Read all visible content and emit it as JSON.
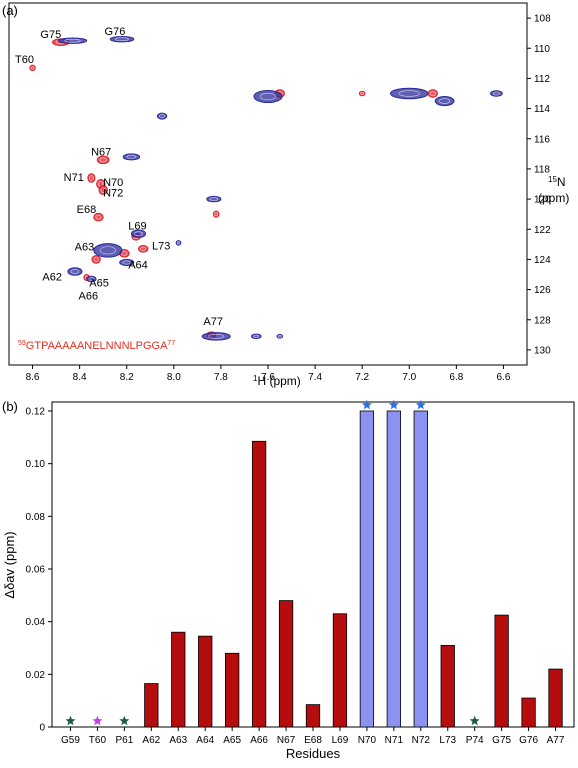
{
  "panel_a": {
    "label": "(a)",
    "xlabel_sup": "1",
    "xlabel_main": "H (ppm)",
    "ylabel_sup": "15",
    "ylabel_main": "N",
    "ylabel_unit": "(ppm)",
    "sequence_start": "59",
    "sequence_text": "GTPAAAAANELNNNLPGGA",
    "sequence_end": "77",
    "sequence_color": "#e03020",
    "series_colors": {
      "red": "#e0202a",
      "blue": "#2a2a9a"
    }
  },
  "panel_b": {
    "label": "(b)",
    "colors": {
      "bar": "#b50d0d",
      "highlight_bar": "#8c92f0",
      "star_green": "#1f5a4a",
      "star_magenta": "#c040e0",
      "star_blue": "#2a6fe6"
    }
  },
  "chart_data": [
    {
      "type": "scatter",
      "xlabel": "1H (ppm)",
      "ylabel": "15N (ppm)",
      "xlim": [
        8.7,
        6.5
      ],
      "ylim": [
        131,
        107
      ],
      "x_ticks": [
        "8.6",
        "8.4",
        "8.2",
        "8.0",
        "7.8",
        "7.6",
        "7.4",
        "7.2",
        "7.0",
        "6.8",
        "6.6"
      ],
      "x_tick_values": [
        8.6,
        8.4,
        8.2,
        8.0,
        7.8,
        7.6,
        7.4,
        7.2,
        7.0,
        6.8,
        6.6
      ],
      "y_ticks": [
        "108",
        "110",
        "112",
        "114",
        "116",
        "118",
        "120",
        "122",
        "124",
        "126",
        "128",
        "130"
      ],
      "y_tick_values": [
        108,
        110,
        112,
        114,
        116,
        118,
        120,
        122,
        124,
        126,
        128,
        130
      ],
      "annotations": [
        {
          "text": "G75",
          "x": 8.48,
          "y": 109.6
        },
        {
          "text": "G76",
          "x": 8.25,
          "y": 109.4
        },
        {
          "text": "T60",
          "x": 8.6,
          "y": 111.3
        },
        {
          "text": "N67",
          "x": 8.3,
          "y": 117.3
        },
        {
          "text": "N71",
          "x": 8.34,
          "y": 118.6
        },
        {
          "text": "N70",
          "x": 8.3,
          "y": 119.0
        },
        {
          "text": "N72",
          "x": 8.3,
          "y": 119.3
        },
        {
          "text": "E68",
          "x": 8.32,
          "y": 121.2
        },
        {
          "text": "L69",
          "x": 8.18,
          "y": 122.4
        },
        {
          "text": "A63",
          "x": 8.32,
          "y": 123.6
        },
        {
          "text": "L73",
          "x": 8.13,
          "y": 123.2
        },
        {
          "text": "A64",
          "x": 8.22,
          "y": 124.4
        },
        {
          "text": "A62",
          "x": 8.44,
          "y": 124.8
        },
        {
          "text": "A65",
          "x": 8.36,
          "y": 125.2
        },
        {
          "text": "A66",
          "x": 8.38,
          "y": 125.6
        },
        {
          "text": "A77",
          "x": 7.82,
          "y": 129.0
        }
      ],
      "series": [
        {
          "name": "",
          "color": "red",
          "points": [
            {
              "x": 8.48,
              "y": 109.6,
              "rx": 0.035,
              "ry": 0.22
            },
            {
              "x": 8.6,
              "y": 111.3,
              "rx": 0.012,
              "ry": 0.18
            },
            {
              "x": 8.3,
              "y": 117.4,
              "rx": 0.025,
              "ry": 0.25
            },
            {
              "x": 8.35,
              "y": 118.6,
              "rx": 0.015,
              "ry": 0.28
            },
            {
              "x": 8.31,
              "y": 119.0,
              "rx": 0.018,
              "ry": 0.3
            },
            {
              "x": 8.3,
              "y": 119.4,
              "rx": 0.018,
              "ry": 0.3
            },
            {
              "x": 8.32,
              "y": 121.2,
              "rx": 0.02,
              "ry": 0.25
            },
            {
              "x": 8.16,
              "y": 122.5,
              "rx": 0.018,
              "ry": 0.22
            },
            {
              "x": 8.13,
              "y": 123.3,
              "rx": 0.02,
              "ry": 0.22
            },
            {
              "x": 8.21,
              "y": 123.6,
              "rx": 0.02,
              "ry": 0.25
            },
            {
              "x": 8.33,
              "y": 124.0,
              "rx": 0.018,
              "ry": 0.25
            },
            {
              "x": 8.37,
              "y": 125.2,
              "rx": 0.012,
              "ry": 0.2
            },
            {
              "x": 7.82,
              "y": 121.0,
              "rx": 0.012,
              "ry": 0.2
            },
            {
              "x": 7.55,
              "y": 113.0,
              "rx": 0.02,
              "ry": 0.25
            },
            {
              "x": 6.9,
              "y": 113.0,
              "rx": 0.02,
              "ry": 0.25
            },
            {
              "x": 7.2,
              "y": 113.0,
              "rx": 0.012,
              "ry": 0.15
            },
            {
              "x": 7.84,
              "y": 129.0,
              "rx": 0.018,
              "ry": 0.2
            }
          ]
        },
        {
          "name": "",
          "color": "blue",
          "points": [
            {
              "x": 8.43,
              "y": 109.5,
              "rx": 0.06,
              "ry": 0.18
            },
            {
              "x": 8.22,
              "y": 109.4,
              "rx": 0.05,
              "ry": 0.18
            },
            {
              "x": 8.18,
              "y": 117.2,
              "rx": 0.035,
              "ry": 0.2
            },
            {
              "x": 8.05,
              "y": 114.5,
              "rx": 0.02,
              "ry": 0.2
            },
            {
              "x": 7.83,
              "y": 120.0,
              "rx": 0.03,
              "ry": 0.18
            },
            {
              "x": 8.15,
              "y": 122.3,
              "rx": 0.03,
              "ry": 0.25
            },
            {
              "x": 8.28,
              "y": 123.4,
              "rx": 0.06,
              "ry": 0.45
            },
            {
              "x": 8.2,
              "y": 124.2,
              "rx": 0.03,
              "ry": 0.2
            },
            {
              "x": 8.42,
              "y": 124.8,
              "rx": 0.03,
              "ry": 0.25
            },
            {
              "x": 8.35,
              "y": 125.3,
              "rx": 0.02,
              "ry": 0.18
            },
            {
              "x": 7.98,
              "y": 122.9,
              "rx": 0.01,
              "ry": 0.15
            },
            {
              "x": 7.6,
              "y": 113.2,
              "rx": 0.06,
              "ry": 0.4
            },
            {
              "x": 7.0,
              "y": 113.0,
              "rx": 0.08,
              "ry": 0.35
            },
            {
              "x": 6.85,
              "y": 113.5,
              "rx": 0.04,
              "ry": 0.3
            },
            {
              "x": 6.63,
              "y": 113.0,
              "rx": 0.025,
              "ry": 0.18
            },
            {
              "x": 7.82,
              "y": 129.1,
              "rx": 0.06,
              "ry": 0.25
            },
            {
              "x": 7.65,
              "y": 129.1,
              "rx": 0.02,
              "ry": 0.15
            },
            {
              "x": 7.55,
              "y": 129.1,
              "rx": 0.012,
              "ry": 0.12
            }
          ]
        }
      ]
    },
    {
      "type": "bar",
      "xlabel": "Residues",
      "ylabel": "Δδav (ppm)",
      "ylim": [
        0,
        0.12
      ],
      "y_ticks": [
        "0",
        "0.02",
        "0.04",
        "0.06",
        "0.08",
        "0.10",
        "0.12"
      ],
      "y_tick_values": [
        0,
        0.02,
        0.04,
        0.06,
        0.08,
        0.1,
        0.12
      ],
      "categories": [
        "G59",
        "T60",
        "P61",
        "A62",
        "A63",
        "A64",
        "A65",
        "A66",
        "N67",
        "E68",
        "L69",
        "N70",
        "N71",
        "N72",
        "L73",
        "P74",
        "G75",
        "G76",
        "A77"
      ],
      "values": [
        0,
        0,
        0,
        0.0165,
        0.036,
        0.0345,
        0.028,
        0.1085,
        0.048,
        0.0085,
        0.043,
        0.12,
        0.12,
        0.12,
        0.031,
        0,
        0.0425,
        0.011,
        0.022
      ],
      "bar_style": [
        "none",
        "none",
        "none",
        "red",
        "red",
        "red",
        "red",
        "red",
        "red",
        "red",
        "red",
        "highlight",
        "highlight",
        "highlight",
        "red",
        "none",
        "red",
        "red",
        "red"
      ],
      "markers": [
        "star_green",
        "star_magenta",
        "star_green",
        "",
        "",
        "",
        "",
        "",
        "",
        "",
        "",
        "star_blue",
        "star_blue",
        "star_blue",
        "",
        "star_green",
        "",
        "",
        ""
      ]
    }
  ]
}
